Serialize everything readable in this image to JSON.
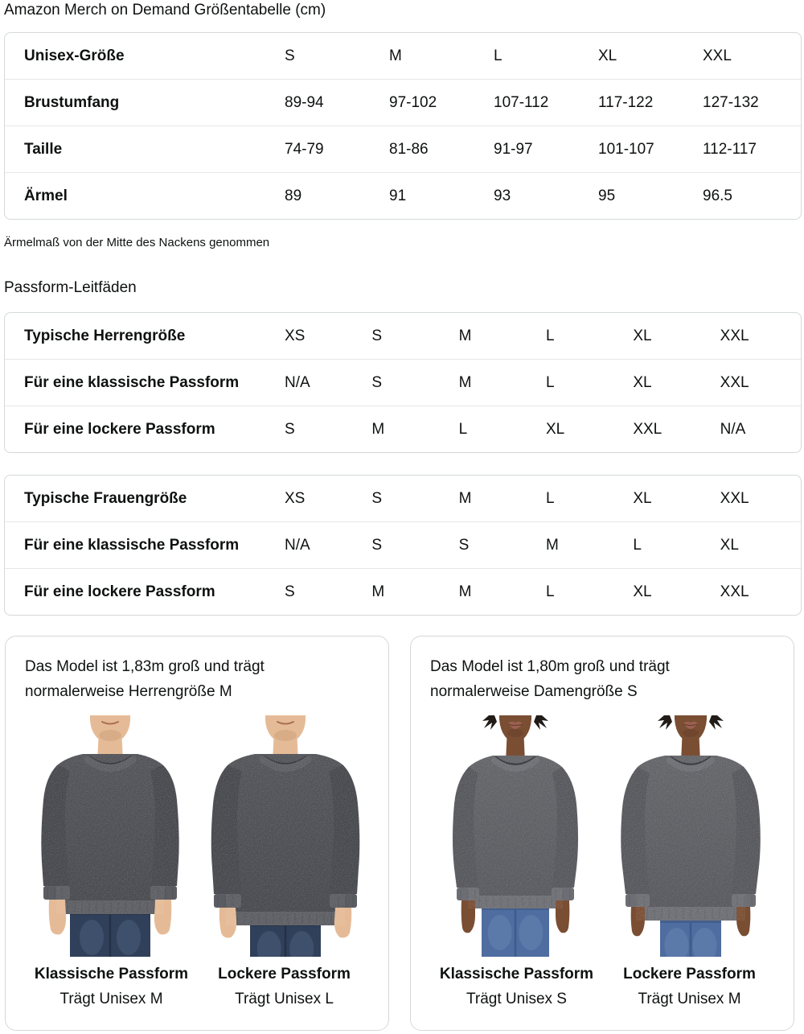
{
  "page": {
    "title": "Amazon Merch on Demand Größentabelle (cm)",
    "note": "Ärmelmaß von der Mitte des Nackens genommen",
    "fit_heading": "Passform-Leitfäden"
  },
  "tables": {
    "unisex": {
      "cols": 5,
      "rows": [
        {
          "label": "Unisex-Größe",
          "values": [
            "S",
            "M",
            "L",
            "XL",
            "XXL"
          ]
        },
        {
          "label": "Brustumfang",
          "values": [
            "89-94",
            "97-102",
            "107-112",
            "117-122",
            "127-132"
          ]
        },
        {
          "label": "Taille",
          "values": [
            "74-79",
            "81-86",
            "91-97",
            "101-107",
            "112-117"
          ]
        },
        {
          "label": "Ärmel",
          "values": [
            "89",
            "91",
            "93",
            "95",
            "96.5"
          ]
        }
      ]
    },
    "men": {
      "cols": 6,
      "rows": [
        {
          "label": "Typische Herrengröße",
          "values": [
            "XS",
            "S",
            "M",
            "L",
            "XL",
            "XXL"
          ]
        },
        {
          "label": "Für eine klassische Passform",
          "values": [
            "N/A",
            "S",
            "M",
            "L",
            "XL",
            "XXL"
          ]
        },
        {
          "label": "Für eine lockere Passform",
          "values": [
            "S",
            "M",
            "L",
            "XL",
            "XXL",
            "N/A"
          ]
        }
      ]
    },
    "women": {
      "cols": 6,
      "rows": [
        {
          "label": "Typische Frauengröße",
          "values": [
            "XS",
            "S",
            "M",
            "L",
            "XL",
            "XXL"
          ]
        },
        {
          "label": "Für eine klassische Passform",
          "values": [
            "N/A",
            "S",
            "S",
            "M",
            "L",
            "XL"
          ]
        },
        {
          "label": "Für eine lockere Passform",
          "values": [
            "S",
            "M",
            "M",
            "L",
            "XL",
            "XXL"
          ]
        }
      ]
    }
  },
  "cards": [
    {
      "description": "Das Model ist 1,83m groß und trägt\nnormalerweise Herrengröße M",
      "figures": [
        {
          "caption": "Klassische Passform",
          "sub": "Trägt Unisex M",
          "model": "man",
          "fit": "classic"
        },
        {
          "caption": "Lockere Passform",
          "sub": "Trägt Unisex L",
          "model": "man",
          "fit": "loose"
        }
      ]
    },
    {
      "description": "Das Model ist 1,80m groß und trägt\nnormalerweise Damengröße S",
      "figures": [
        {
          "caption": "Klassische Passform",
          "sub": "Trägt Unisex S",
          "model": "woman",
          "fit": "classic"
        },
        {
          "caption": "Lockere Passform",
          "sub": "Trägt Unisex M",
          "model": "woman",
          "fit": "loose"
        }
      ]
    }
  ],
  "colors": {
    "text": "#0f1111",
    "table_border": "#d5d9d9",
    "row_separator": "#e7e7e7",
    "card_border": "#d5d9d9",
    "sweat_man": "#525358",
    "sweat_man_deep": "#46474c",
    "rib_man": "#5c5d62",
    "collar_shadow": "#33343a",
    "sweat_woman": "#636468",
    "sweat_woman_deep": "#55565b",
    "rib_woman": "#6d6e73",
    "skin_man": "#e5bb97",
    "skin_man_deep": "#c2916c",
    "mouth_man": "#a96f52",
    "skin_woman": "#7a4e33",
    "skin_woman_deep": "#5f3a24",
    "lips_woman": "#9c6053",
    "hair_woman": "#221c19",
    "jeans_man": "#31405a",
    "jeans_man_wash": "#5a7190",
    "jeans_man_deep": "#1f2a3d",
    "jeans_woman": "#4f6da0",
    "jeans_woman_wash": "#7490bb",
    "jeans_woman_deep": "#3a5480",
    "speckle": "#ffffff"
  }
}
